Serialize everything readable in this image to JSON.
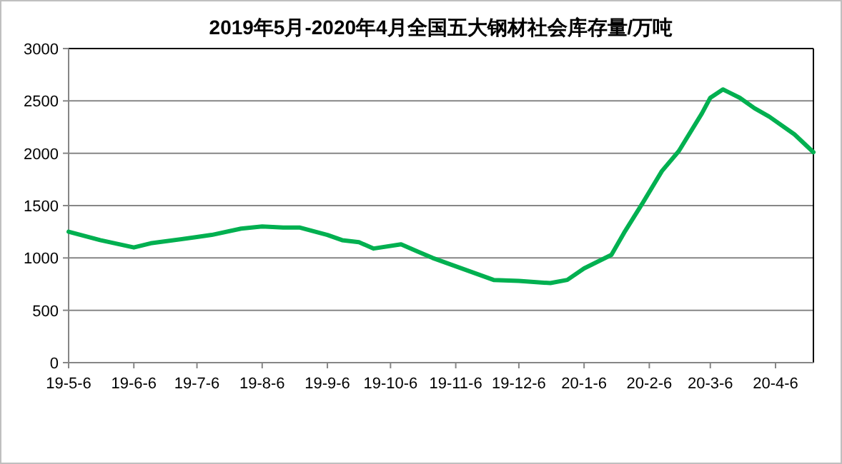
{
  "chart_data": {
    "type": "line",
    "title": "2019年5月-2020年4月全国五大钢材社会库存量/万吨",
    "x": [
      "2019-05-06",
      "2019-05-21",
      "2019-06-06",
      "2019-06-14",
      "2019-07-06",
      "2019-07-13",
      "2019-07-27",
      "2019-08-06",
      "2019-08-16",
      "2019-08-24",
      "2019-09-06",
      "2019-09-13",
      "2019-09-21",
      "2019-09-28",
      "2019-10-11",
      "2019-10-19",
      "2019-10-26",
      "2019-11-24",
      "2019-12-06",
      "2019-12-21",
      "2019-12-29",
      "2020-01-06",
      "2020-01-19",
      "2020-01-25",
      "2020-02-03",
      "2020-02-12",
      "2020-02-20",
      "2020-03-02",
      "2020-03-06",
      "2020-03-12",
      "2020-03-20",
      "2020-03-27",
      "2020-04-03",
      "2020-04-15",
      "2020-04-24"
    ],
    "series": [
      {
        "color": "#00b050",
        "values": [
          1250,
          1170,
          1100,
          1140,
          1200,
          1220,
          1280,
          1300,
          1290,
          1290,
          1220,
          1170,
          1150,
          1090,
          1130,
          1060,
          1000,
          790,
          780,
          760,
          790,
          900,
          1030,
          1240,
          1530,
          1830,
          2020,
          2380,
          2530,
          2610,
          2530,
          2430,
          2350,
          2180,
          2010
        ]
      }
    ],
    "xlim": [
      "2019-05-06",
      "2020-04-24"
    ],
    "xticks": [
      {
        "value": "2019-05-06",
        "label": "19-5-6"
      },
      {
        "value": "2019-06-06",
        "label": "19-6-6"
      },
      {
        "value": "2019-07-06",
        "label": "19-7-6"
      },
      {
        "value": "2019-08-06",
        "label": "19-8-6"
      },
      {
        "value": "2019-09-06",
        "label": "19-9-6"
      },
      {
        "value": "2019-10-06",
        "label": "19-10-6"
      },
      {
        "value": "2019-11-06",
        "label": "19-11-6"
      },
      {
        "value": "2019-12-06",
        "label": "19-12-6"
      },
      {
        "value": "2020-01-06",
        "label": "20-1-6"
      },
      {
        "value": "2020-02-06",
        "label": "20-2-6"
      },
      {
        "value": "2020-03-06",
        "label": "20-3-6"
      },
      {
        "value": "2020-04-06",
        "label": "20-4-6"
      }
    ],
    "ylim": [
      0,
      3000
    ],
    "yticks": [
      0,
      500,
      1000,
      1500,
      2000,
      2500,
      3000
    ],
    "grid": "y",
    "marker": "none",
    "line_style": "solid"
  }
}
